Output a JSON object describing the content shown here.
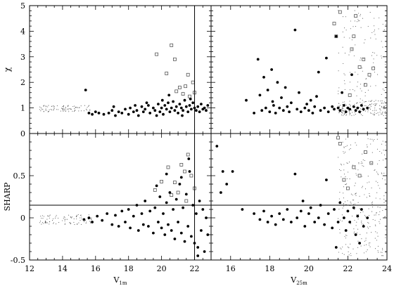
{
  "chart_data": {
    "type": "scatter",
    "panels": [
      {
        "id": "chi_v1m",
        "ylabel": "χ",
        "xlabel": "",
        "xlim": [
          12,
          23
        ],
        "ylim": [
          0,
          5
        ],
        "xticks": [
          12,
          14,
          16,
          18,
          20,
          22
        ],
        "yticks": [
          1,
          2,
          3,
          4,
          5
        ],
        "vline": 22,
        "hline": null,
        "filled": [
          [
            15.6,
            0.8
          ],
          [
            15.8,
            0.75
          ],
          [
            16,
            0.85
          ],
          [
            16.2,
            0.8
          ],
          [
            16.5,
            0.75
          ],
          [
            16.8,
            0.8
          ],
          [
            17,
            0.9
          ],
          [
            17.2,
            0.7
          ],
          [
            17.4,
            0.85
          ],
          [
            17.6,
            0.8
          ],
          [
            17.8,
            0.95
          ],
          [
            18,
            0.75
          ],
          [
            18.1,
            1.0
          ],
          [
            18.3,
            0.85
          ],
          [
            18.5,
            0.9
          ],
          [
            18.6,
            0.7
          ],
          [
            18.8,
            1.05
          ],
          [
            18.9,
            0.85
          ],
          [
            19,
            0.95
          ],
          [
            19.2,
            1.1
          ],
          [
            19.3,
            0.8
          ],
          [
            19.5,
            1.0
          ],
          [
            19.6,
            0.9
          ],
          [
            19.8,
            1.15
          ],
          [
            19.9,
            0.85
          ],
          [
            20,
            1.0
          ],
          [
            20.1,
            0.75
          ],
          [
            20.2,
            1.1
          ],
          [
            20.3,
            0.95
          ],
          [
            20.4,
            1.2
          ],
          [
            20.5,
            0.85
          ],
          [
            20.6,
            1.0
          ],
          [
            20.7,
            1.25
          ],
          [
            20.8,
            0.9
          ],
          [
            20.9,
            1.05
          ],
          [
            21,
            0.8
          ],
          [
            21.1,
            1.15
          ],
          [
            21.2,
            1.0
          ],
          [
            21.3,
            0.9
          ],
          [
            21.4,
            1.3
          ],
          [
            21.5,
            1.05
          ],
          [
            21.6,
            0.85
          ],
          [
            21.7,
            1.1
          ],
          [
            21.8,
            0.95
          ],
          [
            21.9,
            1.2
          ],
          [
            22,
            1.0
          ],
          [
            22.1,
            0.9
          ],
          [
            22.2,
            1.05
          ],
          [
            22.3,
            0.85
          ],
          [
            22.4,
            1.15
          ],
          [
            22.5,
            0.95
          ],
          [
            22.6,
            1.0
          ],
          [
            22.7,
            0.9
          ],
          [
            22.8,
            1.1
          ],
          [
            15.4,
            1.7
          ],
          [
            17.1,
            1.05
          ],
          [
            18.4,
            1.1
          ],
          [
            19.7,
            0.7
          ],
          [
            20.05,
            1.3
          ],
          [
            21.25,
            0.7
          ],
          [
            21.75,
            1.35
          ],
          [
            20.45,
            1.5
          ],
          [
            19.1,
            1.2
          ]
        ],
        "open": [
          [
            19.7,
            3.1
          ],
          [
            20.3,
            2.35
          ],
          [
            20.6,
            3.45
          ],
          [
            20.8,
            2.9
          ],
          [
            21.1,
            1.8
          ],
          [
            21.3,
            1.55
          ],
          [
            21.45,
            1.85
          ],
          [
            21.6,
            2.3
          ],
          [
            21.9,
            2.0
          ],
          [
            22,
            1.6
          ],
          [
            21.7,
            1.45
          ],
          [
            20.9,
            1.65
          ]
        ]
      },
      {
        "id": "chi_v25m",
        "ylabel": "",
        "xlabel": "",
        "xlim": [
          15,
          24
        ],
        "ylim": [
          0,
          5
        ],
        "xticks": [
          16,
          18,
          20,
          22,
          24
        ],
        "yticks": [
          1,
          2,
          3,
          4,
          5
        ],
        "vline": null,
        "hline": null,
        "filled": [
          [
            16.8,
            1.3
          ],
          [
            17.2,
            0.8
          ],
          [
            17.4,
            2.9
          ],
          [
            17.5,
            1.5
          ],
          [
            17.6,
            0.9
          ],
          [
            17.7,
            2.2
          ],
          [
            17.8,
            1.0
          ],
          [
            17.9,
            1.7
          ],
          [
            18,
            0.85
          ],
          [
            18.1,
            2.5
          ],
          [
            18.2,
            1.1
          ],
          [
            18.3,
            0.8
          ],
          [
            18.4,
            2.0
          ],
          [
            18.5,
            1.0
          ],
          [
            18.6,
            1.4
          ],
          [
            18.7,
            0.9
          ],
          [
            18.8,
            1.8
          ],
          [
            18.9,
            1.05
          ],
          [
            19,
            0.85
          ],
          [
            19.1,
            1.2
          ],
          [
            19.3,
            4.05
          ],
          [
            19.4,
            0.95
          ],
          [
            19.5,
            1.6
          ],
          [
            19.6,
            0.85
          ],
          [
            19.8,
            1.0
          ],
          [
            20,
            0.9
          ],
          [
            20.1,
            1.3
          ],
          [
            20.2,
            0.8
          ],
          [
            20.3,
            1.05
          ],
          [
            20.5,
            2.4
          ],
          [
            20.6,
            0.9
          ],
          [
            20.8,
            1.0
          ],
          [
            20.9,
            2.95
          ],
          [
            21,
            0.85
          ],
          [
            21.2,
            1.05
          ],
          [
            21.3,
            0.95
          ],
          [
            21.4,
            3.8
          ],
          [
            21.5,
            1.0
          ],
          [
            21.6,
            0.9
          ],
          [
            21.8,
            1.1
          ],
          [
            21.9,
            0.85
          ],
          [
            22,
            1.0
          ],
          [
            22.1,
            0.95
          ],
          [
            22.2,
            2.3
          ],
          [
            22.3,
            1.05
          ],
          [
            22.4,
            0.9
          ],
          [
            22.5,
            1.0
          ],
          [
            22.6,
            0.85
          ],
          [
            22.7,
            1.1
          ],
          [
            22.8,
            0.95
          ],
          [
            23,
            1.0
          ],
          [
            21.7,
            1.6
          ],
          [
            20.4,
            1.45
          ],
          [
            19.9,
            1.15
          ],
          [
            18.15,
            1.25
          ]
        ],
        "open": [
          [
            21.3,
            4.3
          ],
          [
            21.4,
            3.8
          ],
          [
            21.6,
            4.75
          ],
          [
            22.2,
            3.3
          ],
          [
            22.3,
            3.8
          ],
          [
            22.6,
            2.6
          ],
          [
            22.8,
            2.9
          ],
          [
            23.1,
            2.3
          ],
          [
            22.9,
            1.9
          ],
          [
            22.4,
            4.6
          ],
          [
            23.3,
            2.55
          ],
          [
            22.1,
            1.5
          ]
        ]
      },
      {
        "id": "sharp_v1m",
        "ylabel": "SHARP",
        "xlabel": "V1m",
        "xlim": [
          12,
          23
        ],
        "ylim": [
          -0.5,
          1
        ],
        "xticks": [
          12,
          14,
          16,
          18,
          20,
          22
        ],
        "yticks": [
          -0.5,
          0,
          0.5
        ],
        "vline": 22,
        "hline": 0.15,
        "filled": [
          [
            15.3,
            -0.02
          ],
          [
            15.6,
            0.0
          ],
          [
            15.8,
            -0.05
          ],
          [
            16.1,
            0.02
          ],
          [
            16.4,
            -0.03
          ],
          [
            16.7,
            0.05
          ],
          [
            17,
            -0.08
          ],
          [
            17.2,
            0.03
          ],
          [
            17.4,
            -0.1
          ],
          [
            17.6,
            0.08
          ],
          [
            17.8,
            -0.05
          ],
          [
            18,
            0.1
          ],
          [
            18.1,
            -0.12
          ],
          [
            18.3,
            0.02
          ],
          [
            18.5,
            0.15
          ],
          [
            18.6,
            -0.15
          ],
          [
            18.8,
            0.05
          ],
          [
            18.9,
            -0.08
          ],
          [
            19,
            0.2
          ],
          [
            19.2,
            -0.1
          ],
          [
            19.3,
            0.08
          ],
          [
            19.5,
            -0.18
          ],
          [
            19.6,
            0.12
          ],
          [
            19.8,
            -0.05
          ],
          [
            19.9,
            0.25
          ],
          [
            20,
            -0.12
          ],
          [
            20.1,
            0.05
          ],
          [
            20.2,
            -0.2
          ],
          [
            20.3,
            0.18
          ],
          [
            20.4,
            -0.08
          ],
          [
            20.5,
            0.3
          ],
          [
            20.6,
            -0.15
          ],
          [
            20.7,
            0.1
          ],
          [
            20.8,
            -0.25
          ],
          [
            20.9,
            0.22
          ],
          [
            21,
            -0.05
          ],
          [
            21.1,
            0.4
          ],
          [
            21.2,
            -0.18
          ],
          [
            21.3,
            0.12
          ],
          [
            21.4,
            -0.28
          ],
          [
            21.5,
            0.28
          ],
          [
            21.6,
            -0.1
          ],
          [
            21.7,
            0.55
          ],
          [
            21.8,
            -0.22
          ],
          [
            21.9,
            0.15
          ],
          [
            22,
            -0.3
          ],
          [
            22.1,
            0.05
          ],
          [
            22.2,
            -0.35
          ],
          [
            22.3,
            0.2
          ],
          [
            22.4,
            -0.15
          ],
          [
            22.5,
            0.1
          ],
          [
            22.6,
            -0.4
          ],
          [
            22.7,
            0.0
          ],
          [
            22.8,
            -0.2
          ],
          [
            21.65,
            0.7
          ],
          [
            21.2,
            0.48
          ],
          [
            20.3,
            0.52
          ],
          [
            19.7,
            0.38
          ],
          [
            22.2,
            -0.45
          ]
        ],
        "open": [
          [
            19.6,
            0.33
          ],
          [
            20,
            0.43
          ],
          [
            20.4,
            0.6
          ],
          [
            20.8,
            0.42
          ],
          [
            21,
            0.3
          ],
          [
            21.2,
            0.63
          ],
          [
            21.4,
            0.55
          ],
          [
            21.6,
            0.75
          ],
          [
            21.8,
            0.5
          ],
          [
            22,
            0.35
          ],
          [
            21.5,
            0.2
          ],
          [
            20.6,
            0.27
          ]
        ]
      },
      {
        "id": "sharp_v25m",
        "ylabel": "",
        "xlabel": "V25m",
        "xlim": [
          15,
          24
        ],
        "ylim": [
          -0.5,
          1
        ],
        "xticks": [
          16,
          18,
          20,
          22,
          24
        ],
        "yticks": [
          -0.5,
          0,
          0.5
        ],
        "vline": null,
        "hline": 0.15,
        "filled": [
          [
            15.3,
            0.85
          ],
          [
            15.5,
            0.3
          ],
          [
            15.6,
            0.55
          ],
          [
            15.8,
            0.4
          ],
          [
            16.1,
            0.55
          ],
          [
            16.6,
            0.1
          ],
          [
            17.2,
            0.05
          ],
          [
            17.5,
            -0.02
          ],
          [
            17.7,
            0.08
          ],
          [
            17.9,
            -0.05
          ],
          [
            18.1,
            0.02
          ],
          [
            18.3,
            -0.08
          ],
          [
            18.5,
            0.05
          ],
          [
            18.7,
            -0.02
          ],
          [
            18.9,
            0.1
          ],
          [
            19.1,
            -0.05
          ],
          [
            19.3,
            0.52
          ],
          [
            19.4,
            0.0
          ],
          [
            19.6,
            0.08
          ],
          [
            19.8,
            -0.1
          ],
          [
            20,
            0.05
          ],
          [
            20.1,
            0.12
          ],
          [
            20.3,
            -0.05
          ],
          [
            20.5,
            0.0
          ],
          [
            20.6,
            0.15
          ],
          [
            20.8,
            -0.08
          ],
          [
            21,
            0.05
          ],
          [
            21.2,
            -0.12
          ],
          [
            21.3,
            0.1
          ],
          [
            21.5,
            -0.05
          ],
          [
            21.6,
            0.18
          ],
          [
            21.8,
            0.0
          ],
          [
            21.9,
            -0.15
          ],
          [
            22,
            0.08
          ],
          [
            22.1,
            -0.05
          ],
          [
            22.3,
            0.12
          ],
          [
            22.4,
            -0.2
          ],
          [
            22.5,
            0.02
          ],
          [
            22.7,
            0.1
          ],
          [
            22.8,
            -0.1
          ],
          [
            23,
            0.0
          ],
          [
            21.4,
            -0.35
          ],
          [
            20.9,
            0.45
          ],
          [
            22.6,
            -0.3
          ],
          [
            19.7,
            0.2
          ]
        ],
        "open": [
          [
            21.5,
            0.95
          ],
          [
            21.6,
            0.88
          ],
          [
            22.3,
            0.6
          ],
          [
            22.6,
            0.5
          ],
          [
            21.8,
            0.45
          ],
          [
            22.9,
            0.78
          ],
          [
            22.0,
            0.35
          ],
          [
            23.2,
            0.65
          ]
        ]
      }
    ]
  }
}
